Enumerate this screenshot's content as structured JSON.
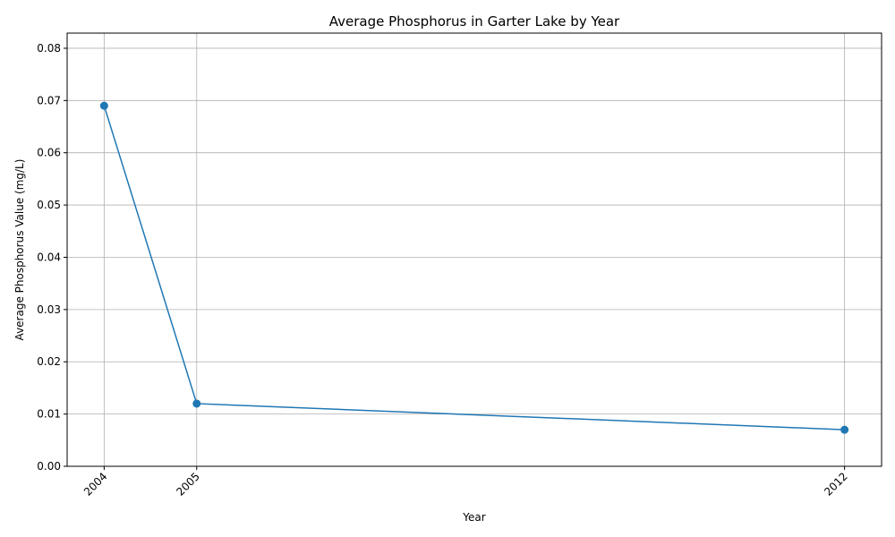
{
  "chart_data": {
    "type": "line",
    "title": "Average Phosphorus in Garter Lake by Year",
    "xlabel": "Year",
    "ylabel": "Average Phosphorus Value (mg/L)",
    "x": [
      2004,
      2005,
      2012
    ],
    "y": [
      0.069,
      0.012,
      0.007
    ],
    "xticks": [
      "2004",
      "2005",
      "2012"
    ],
    "yticks": [
      "0.00",
      "0.01",
      "0.02",
      "0.03",
      "0.04",
      "0.05",
      "0.06",
      "0.07",
      "0.08"
    ],
    "ylim": [
      0,
      0.0829
    ],
    "xlim": [
      2003.6,
      2012.4
    ],
    "grid": true,
    "markers": true,
    "line_color": "#1f77b4"
  }
}
